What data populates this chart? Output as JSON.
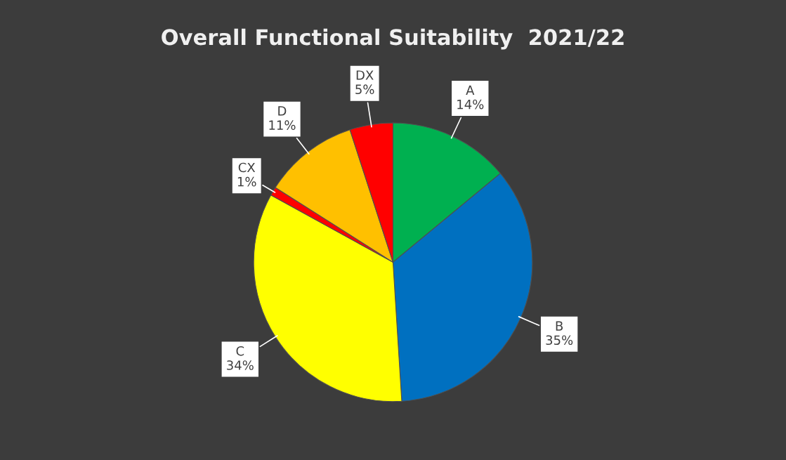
{
  "chart_data": {
    "type": "pie",
    "title": "Overall Functional Suitability  2021/22",
    "categories": [
      "A",
      "B",
      "C",
      "CX",
      "D",
      "DX"
    ],
    "values": [
      14,
      35,
      34,
      1,
      11,
      5
    ],
    "value_labels": [
      "14%",
      "35%",
      "34%",
      "1%",
      "11%",
      "5%"
    ],
    "colors": [
      "#00b050",
      "#0070c0",
      "#ffff00",
      "#ff0000",
      "#ffc000",
      "#ff0000"
    ],
    "legend": false
  }
}
